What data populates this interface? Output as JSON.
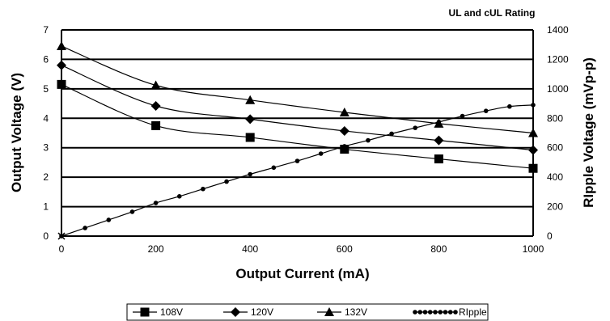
{
  "chart_data": {
    "type": "line",
    "annotation": "UL and cUL Rating",
    "xlabel": "Output Current (mA)",
    "ylabel": "Output Voltage (V)",
    "y2label": "RIpple Voltage (mVp-p)",
    "xlim": [
      0,
      1000
    ],
    "ylim": [
      0,
      7
    ],
    "y2lim": [
      0,
      1400
    ],
    "xticks": [
      0,
      200,
      400,
      600,
      800,
      1000
    ],
    "yticks": [
      0,
      1,
      2,
      3,
      4,
      5,
      6,
      7
    ],
    "y2ticks": [
      0,
      200,
      400,
      600,
      800,
      1000,
      1200,
      1400
    ],
    "grid": "horizontal",
    "legend_position": "bottom",
    "series": [
      {
        "name": "108V",
        "axis": "left",
        "marker": "square",
        "x": [
          0,
          200,
          400,
          600,
          800,
          1000
        ],
        "y": [
          5.15,
          3.75,
          3.35,
          2.95,
          2.62,
          2.3
        ]
      },
      {
        "name": "120V",
        "axis": "left",
        "marker": "diamond",
        "x": [
          0,
          200,
          400,
          600,
          800,
          1000
        ],
        "y": [
          5.8,
          4.42,
          3.97,
          3.57,
          3.25,
          2.92
        ]
      },
      {
        "name": "132V",
        "axis": "left",
        "marker": "triangle",
        "x": [
          0,
          200,
          400,
          600,
          800,
          1000
        ],
        "y": [
          6.45,
          5.12,
          4.62,
          4.2,
          3.82,
          3.5
        ]
      },
      {
        "name": "RIpple",
        "axis": "right",
        "marker": "dot",
        "x": [
          0,
          50,
          100,
          150,
          200,
          250,
          300,
          350,
          400,
          450,
          500,
          550,
          600,
          650,
          700,
          750,
          800,
          850,
          900,
          950,
          1000
        ],
        "y": [
          0,
          55,
          110,
          165,
          225,
          270,
          320,
          370,
          420,
          465,
          510,
          560,
          610,
          650,
          695,
          735,
          775,
          815,
          850,
          880,
          890
        ]
      }
    ]
  }
}
